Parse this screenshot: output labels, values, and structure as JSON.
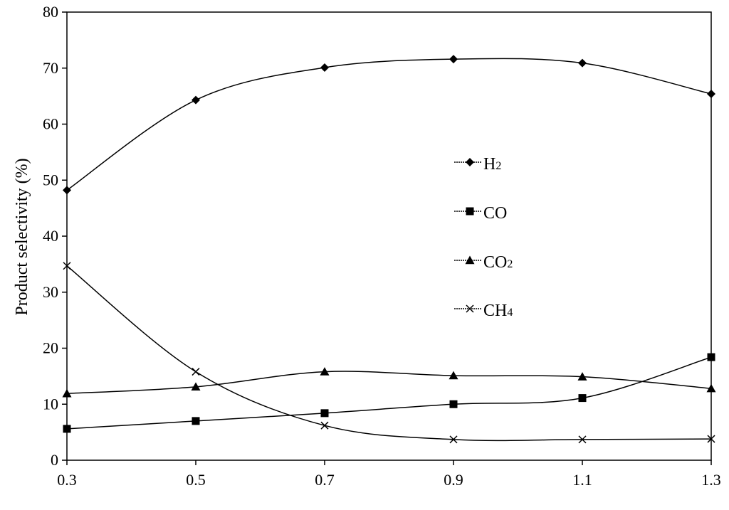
{
  "chart_data": {
    "type": "line",
    "title": "",
    "xlabel": "",
    "ylabel": "Product selectivity (%)",
    "x": [
      0.3,
      0.5,
      0.7,
      0.9,
      1.1,
      1.3
    ],
    "x_tick_labels": [
      "0.3",
      "0.5",
      "0.7",
      "0.9",
      "1.1",
      "1.3"
    ],
    "y_tick_labels": [
      "0",
      "10",
      "20",
      "30",
      "40",
      "50",
      "60",
      "70",
      "80"
    ],
    "xlim": [
      0.3,
      1.3
    ],
    "ylim": [
      0,
      80
    ],
    "grid": false,
    "legend_position": "center-right",
    "series": [
      {
        "name": "H2",
        "label_main": "H",
        "label_sub": "2",
        "marker": "diamond",
        "values": [
          48.2,
          64.3,
          70.1,
          71.6,
          70.9,
          65.4
        ]
      },
      {
        "name": "CO",
        "label_main": "CO",
        "label_sub": "",
        "marker": "square",
        "values": [
          5.6,
          7.0,
          8.4,
          10.0,
          11.1,
          18.4
        ]
      },
      {
        "name": "CO2",
        "label_main": "CO",
        "label_sub": "2",
        "marker": "triangle",
        "values": [
          11.9,
          13.1,
          15.8,
          15.1,
          14.9,
          12.8
        ]
      },
      {
        "name": "CH4",
        "label_main": "CH",
        "label_sub": "4",
        "marker": "x",
        "values": [
          34.7,
          15.8,
          6.2,
          3.7,
          3.7,
          3.8
        ]
      }
    ],
    "colors": {
      "line": "#000000",
      "marker": "#000000",
      "axis": "#000000"
    }
  }
}
